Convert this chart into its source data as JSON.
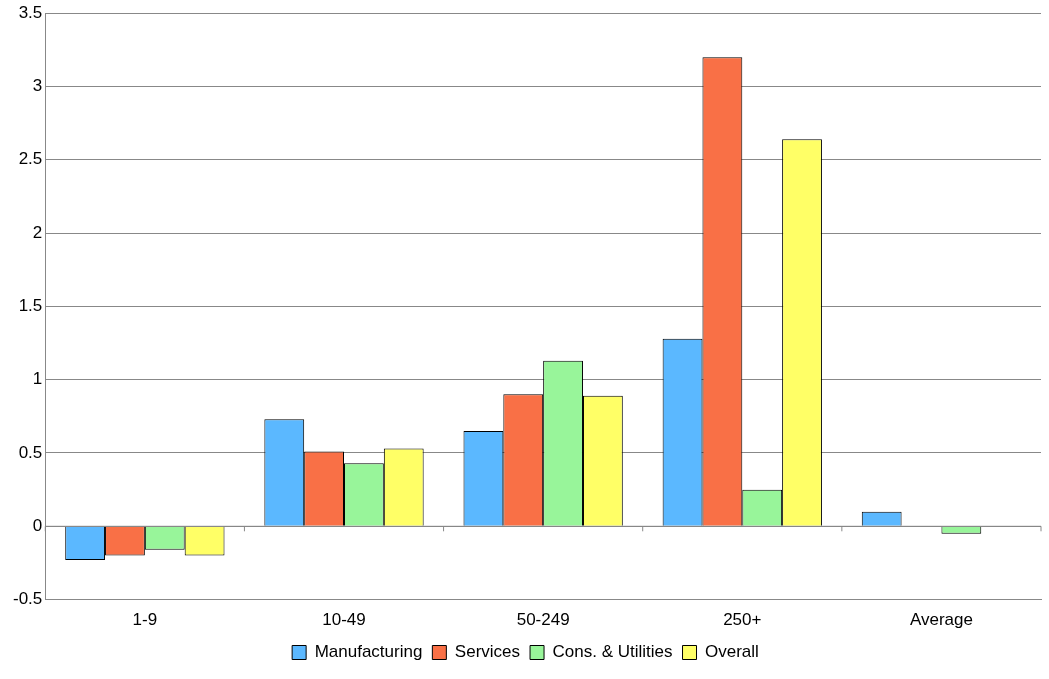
{
  "chart_data": {
    "type": "bar",
    "categories": [
      "1-9",
      "10-49",
      "50-249",
      "250+",
      "Average"
    ],
    "series": [
      {
        "name": "Manufacturing",
        "color": "#5bb8ff",
        "values": [
          -0.23,
          0.73,
          0.65,
          1.28,
          0.1
        ]
      },
      {
        "name": "Services",
        "color": "#f97046",
        "values": [
          -0.2,
          0.51,
          0.9,
          3.2,
          0.0
        ]
      },
      {
        "name": "Cons. & Utilities",
        "color": "#98f59a",
        "values": [
          -0.16,
          0.43,
          1.13,
          0.25,
          -0.05
        ]
      },
      {
        "name": "Overall",
        "color": "#ffff66",
        "values": [
          -0.2,
          0.53,
          0.89,
          2.64,
          null
        ]
      }
    ],
    "ylim": [
      -0.5,
      3.5
    ],
    "yticks": [
      -0.5,
      0,
      0.5,
      1,
      1.5,
      2,
      2.5,
      3,
      3.5
    ],
    "grid": "y",
    "legend": "bottom"
  }
}
